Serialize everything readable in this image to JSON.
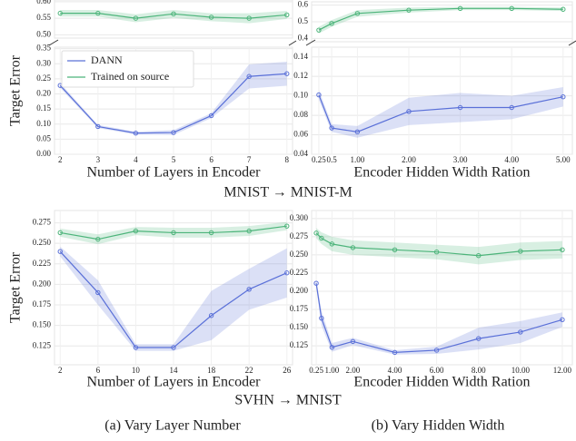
{
  "chart_data": [
    {
      "type": "line",
      "xlabel": "Number of Layers in Encoder",
      "ylabel": "Target Error",
      "x": [
        2,
        3,
        4,
        5,
        6,
        7,
        8
      ],
      "xlim": [
        1.85,
        8.15
      ],
      "xticks": [
        2,
        3,
        4,
        5,
        6,
        7,
        8
      ],
      "y_segments": [
        {
          "ylim": [
            0.49,
            0.605
          ],
          "yticks": [
            {
              "value": 0.5,
              "label": "0.50"
            },
            0.55,
            {
              "value": 0.6,
              "label": "0.60"
            }
          ]
        },
        {
          "ylim": [
            0,
            0.355
          ],
          "yticks": [
            {
              "value": 0,
              "label": "0.00"
            },
            0.05,
            {
              "value": 0.1,
              "label": "0.10"
            },
            0.15,
            {
              "value": 0.2,
              "label": "0.20"
            },
            0.25,
            {
              "value": 0.3,
              "label": "0.30"
            },
            0.35
          ]
        }
      ],
      "grid": true,
      "legend": "upper left",
      "series": [
        {
          "name": "DANN",
          "color": "#5a70d8",
          "values": [
            0.228,
            0.092,
            0.07,
            0.072,
            0.128,
            0.258,
            0.267
          ],
          "errors": [
            0.008,
            0.005,
            0.005,
            0.008,
            0.008,
            0.04,
            0.04
          ]
        },
        {
          "name": "Trained on source",
          "color": "#4cb47a",
          "values": [
            0.565,
            0.565,
            0.55,
            0.563,
            0.553,
            0.55,
            0.56
          ],
          "errors": [
            0.01,
            0.01,
            0.012,
            0.012,
            0.012,
            0.015,
            0.012
          ]
        }
      ]
    },
    {
      "type": "line",
      "xlabel": "Encoder Hidden Width Ration",
      "x": [
        0.25,
        0.5,
        1,
        2,
        3,
        4,
        5
      ],
      "xlim": [
        0.11,
        5.18
      ],
      "xticks": [
        0.25,
        0.5,
        {
          "value": 1,
          "label": "1.00"
        },
        {
          "value": 2,
          "label": "2.00"
        },
        {
          "value": 3,
          "label": "3.00"
        },
        {
          "value": 4,
          "label": "4.00"
        },
        {
          "value": 5,
          "label": "5.00"
        }
      ],
      "y_segments": [
        {
          "ylim": [
            0.38,
            0.62
          ],
          "yticks": [
            0.4,
            0.5,
            0.6
          ]
        },
        {
          "ylim": [
            0.04,
            0.15
          ],
          "yticks": [
            0.04,
            0.06,
            0.08,
            {
              "value": 0.1,
              "label": "0.10"
            },
            0.12,
            0.14
          ]
        }
      ],
      "grid": true,
      "series": [
        {
          "name": "DANN",
          "color": "#5a70d8",
          "values": [
            0.101,
            0.067,
            0.063,
            0.084,
            0.088,
            0.088,
            0.099
          ],
          "errors": [
            0.005,
            0.004,
            0.006,
            0.014,
            0.015,
            0.012,
            0.01
          ]
        },
        {
          "name": "Trained on source",
          "color": "#4cb47a",
          "values": [
            0.45,
            0.49,
            0.55,
            0.57,
            0.58,
            0.58,
            0.575
          ],
          "errors": [
            0.02,
            0.02,
            0.02,
            0.015,
            0.01,
            0.01,
            0.01
          ]
        }
      ]
    },
    {
      "type": "line",
      "xlabel": "Number of Layers in Encoder",
      "ylabel": "Target Error",
      "x": [
        2,
        6,
        10,
        14,
        18,
        22,
        26
      ],
      "xlim": [
        1.4,
        26.6
      ],
      "xticks": [
        2,
        6,
        10,
        14,
        18,
        22,
        26
      ],
      "y_segments": [
        {
          "ylim": [
            0.102,
            0.29
          ],
          "yticks": [
            0.125,
            {
              "value": 0.15,
              "label": "0.150"
            },
            0.175,
            {
              "value": 0.2,
              "label": "0.200"
            },
            0.225,
            {
              "value": 0.25,
              "label": "0.250"
            },
            0.275
          ]
        }
      ],
      "grid": true,
      "series": [
        {
          "name": "DANN",
          "color": "#5a70d8",
          "values": [
            0.24,
            0.19,
            0.123,
            0.123,
            0.162,
            0.194,
            0.214
          ],
          "errors": [
            0.006,
            0.015,
            0.004,
            0.004,
            0.03,
            0.025,
            0.03
          ]
        },
        {
          "name": "Trained on source",
          "color": "#4cb47a",
          "values": [
            0.263,
            0.255,
            0.265,
            0.263,
            0.263,
            0.265,
            0.271
          ],
          "errors": [
            0.005,
            0.006,
            0.005,
            0.006,
            0.006,
            0.006,
            0.005
          ]
        }
      ]
    },
    {
      "type": "line",
      "xlabel": "Encoder Hidden Width Ration",
      "x": [
        0.25,
        0.5,
        1,
        2,
        4,
        6,
        8,
        10,
        12
      ],
      "xlim": [
        0.03,
        12.48
      ],
      "xticks": [
        0.25,
        {
          "value": 1,
          "label": "1.00"
        },
        {
          "value": 2,
          "label": "2.00"
        },
        {
          "value": 4,
          "label": "4.00"
        },
        {
          "value": 6,
          "label": "6.00"
        },
        {
          "value": 8,
          "label": "8.00"
        },
        {
          "value": 10,
          "label": "10.00"
        },
        {
          "value": 12,
          "label": "12.00"
        }
      ],
      "y_segments": [
        {
          "ylim": [
            0.099,
            0.311
          ],
          "yticks": [
            0.125,
            {
              "value": 0.15,
              "label": "0.150"
            },
            0.175,
            {
              "value": 0.2,
              "label": "0.200"
            },
            0.225,
            {
              "value": 0.25,
              "label": "0.250"
            },
            0.275,
            {
              "value": 0.3,
              "label": "0.300"
            }
          ]
        }
      ],
      "grid": true,
      "series": [
        {
          "name": "DANN",
          "color": "#5a70d8",
          "values": [
            0.211,
            0.163,
            0.123,
            0.131,
            0.116,
            0.119,
            0.135,
            0.144,
            0.161
          ],
          "errors": [
            0.005,
            0.01,
            0.006,
            0.005,
            0.003,
            0.005,
            0.015,
            0.015,
            0.01
          ]
        },
        {
          "name": "Trained on source",
          "color": "#4cb47a",
          "values": [
            0.28,
            0.273,
            0.265,
            0.26,
            0.257,
            0.254,
            0.249,
            0.255,
            0.257
          ],
          "errors": [
            0.007,
            0.008,
            0.01,
            0.01,
            0.01,
            0.01,
            0.012,
            0.012,
            0.012
          ]
        }
      ]
    }
  ],
  "row_titles": [
    "MNIST → MNIST-M",
    "SVHN → MNIST"
  ],
  "captions": [
    "(a) Vary Layer Number",
    "(b) Vary Hidden Width"
  ]
}
